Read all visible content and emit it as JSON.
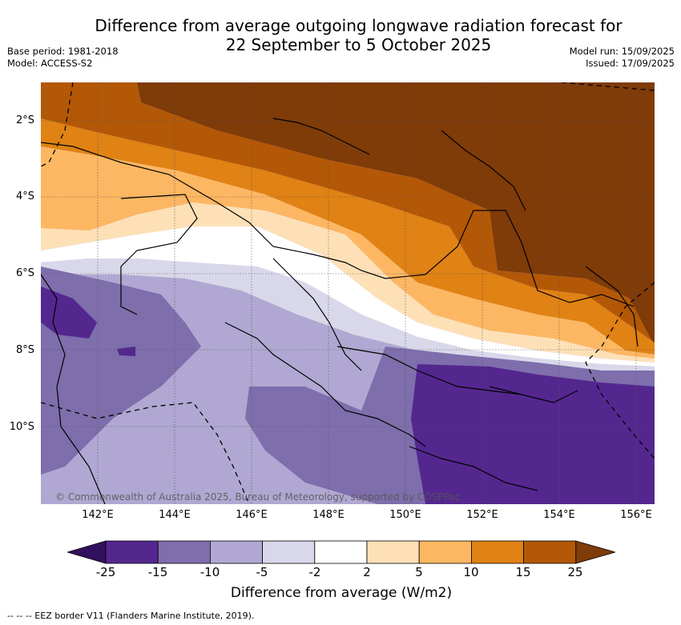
{
  "title_line1": "Difference from average outgoing longwave radiation forecast for",
  "title_line2": "22 September to 5 October 2025",
  "base_period": "Base period: 1981-2018",
  "model": "Model: ACCESS-S2",
  "model_run": "Model run: 15/09/2025",
  "issued": "Issued: 17/09/2025",
  "lat_labels": [
    "2°S",
    "4°S",
    "6°S",
    "8°S",
    "10°S"
  ],
  "lon_labels": [
    "142°E",
    "144°E",
    "146°E",
    "148°E",
    "150°E",
    "152°E",
    "154°E",
    "156°E"
  ],
  "copyright": "© Commonwealth of Australia 2025, Bureau of Meteorology, supported by COSPPac",
  "colorbar": {
    "ticks": [
      "-25",
      "-15",
      "-10",
      "-5",
      "-2",
      "2",
      "5",
      "10",
      "15",
      "25"
    ],
    "colors": [
      "#321060",
      "#54278f",
      "#7e6eac",
      "#b0a8d2",
      "#d9d8ea",
      "#ffffff",
      "#fee0b6",
      "#fdb762",
      "#e08214",
      "#b35806",
      "#7f3b08"
    ],
    "label": "Difference from average (W/m2)"
  },
  "footer": "--  --  -- EEZ border V11 (Flanders Marine Institute, 2019)."
}
